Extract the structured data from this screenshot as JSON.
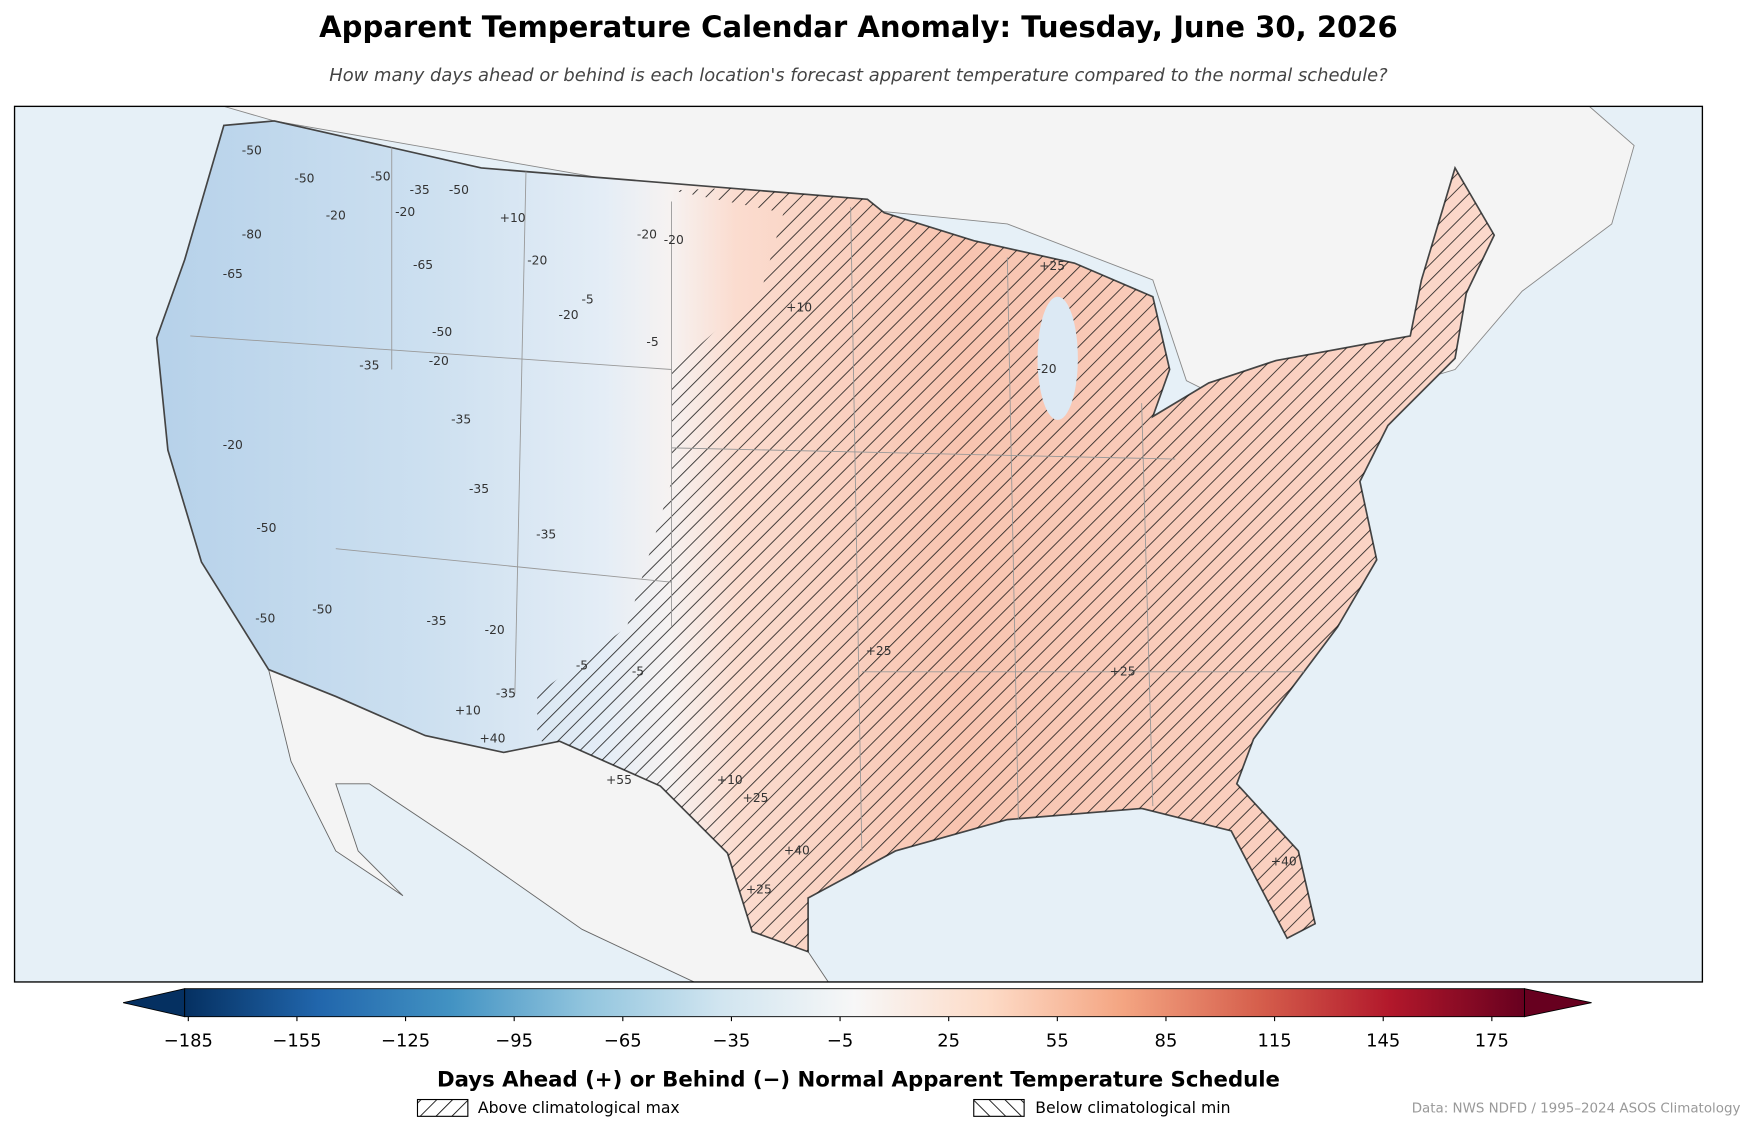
{
  "header": {
    "title": "Apparent Temperature Calendar Anomaly: Tuesday, June 30, 2026",
    "subtitle": "How many days ahead or behind is each location's forecast apparent temperature compared to the normal schedule?"
  },
  "map": {
    "contour_labels": [
      "-50",
      "-50",
      "-50",
      "-35",
      "-50",
      "-20",
      "-20",
      "-80",
      "-65",
      "-65",
      "-50",
      "-20",
      "-35",
      "-20",
      "-20",
      "-20",
      "-5",
      "-20",
      "-5",
      "-35",
      "-35",
      "-35",
      "-20",
      "-50",
      "-50",
      "-50",
      "-35",
      "-20",
      "-35",
      "-5",
      "-5",
      "+10",
      "+10",
      "+25",
      "+25",
      "+25",
      "+10",
      "+40",
      "+55",
      "+10",
      "+25",
      "+40",
      "+25",
      "+40",
      "-20"
    ]
  },
  "colorbar": {
    "label": "Days Ahead (+) or Behind (−) Normal Apparent Temperature Schedule",
    "lim": [
      -186,
      184
    ],
    "ticks": [
      {
        "value": -185,
        "label": "−185"
      },
      {
        "value": -155,
        "label": "−155"
      },
      {
        "value": -125,
        "label": "−125"
      },
      {
        "value": -95,
        "label": "−95"
      },
      {
        "value": -65,
        "label": "−65"
      },
      {
        "value": -35,
        "label": "−35"
      },
      {
        "value": -5,
        "label": "−5"
      },
      25,
      55,
      85,
      115,
      145,
      175
    ],
    "colormap": [
      "#053061",
      "#2166ac",
      "#4393c3",
      "#92c5de",
      "#d1e5f0",
      "#f7f7f7",
      "#fddbc7",
      "#f4a582",
      "#d6604d",
      "#b2182b",
      "#67001f"
    ]
  },
  "legend": [
    "Above climatological max",
    "Below climatological min"
  ],
  "source": "Data: NWS NDFD / 1995–2024 ASOS Climatology"
}
